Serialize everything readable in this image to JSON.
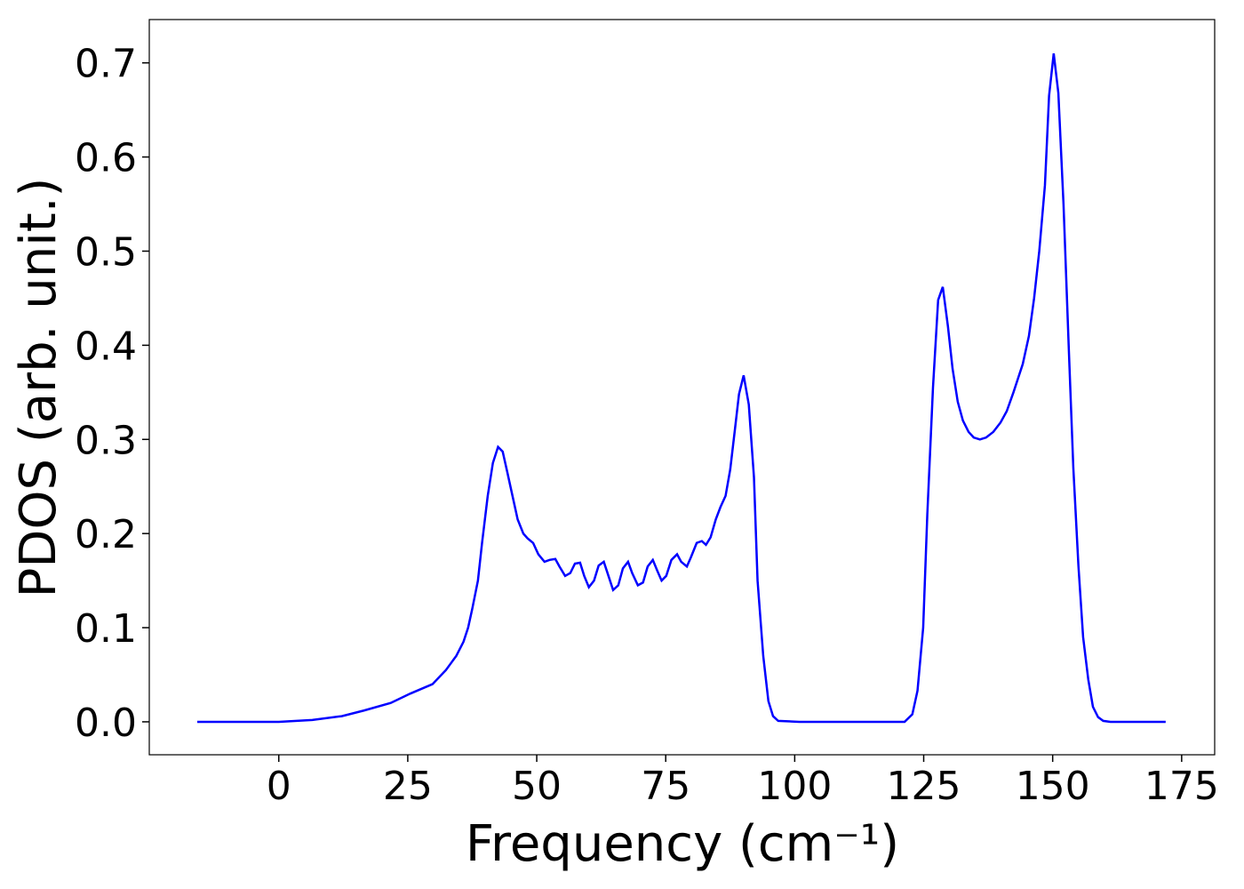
{
  "chart_data": {
    "type": "line",
    "xlabel": "Frequency (cm⁻¹)",
    "ylabel": "PDOS (arb. unit.)",
    "xlim": [
      -25.1,
      181.4
    ],
    "ylim": [
      -0.035,
      0.746
    ],
    "xticks": [
      0,
      25,
      50,
      75,
      100,
      125,
      150,
      175
    ],
    "yticks": [
      {
        "value": 0,
        "label": "0.0"
      },
      {
        "value": 0.1,
        "label": "0.1"
      },
      {
        "value": 0.2,
        "label": "0.2"
      },
      {
        "value": 0.3,
        "label": "0.3"
      },
      {
        "value": 0.4,
        "label": "0.4"
      },
      {
        "value": 0.5,
        "label": "0.5"
      },
      {
        "value": 0.6,
        "label": "0.6"
      },
      {
        "value": 0.7,
        "label": "0.7"
      }
    ],
    "grid": false,
    "series": [
      {
        "color": "#0000ff",
        "x": [
          -15.8,
          0,
          6.5,
          12.2,
          16.5,
          21.7,
          25.5,
          29.8,
          32.4,
          34.4,
          35.8,
          36.7,
          37.5,
          38.6,
          39.4,
          40.5,
          41.5,
          42.5,
          43.4,
          44.3,
          45.3,
          46.3,
          47.4,
          48.2,
          49.3,
          50.3,
          51.5,
          52.5,
          53.6,
          54.4,
          55.5,
          56.5,
          57.4,
          58.4,
          59.2,
          60.1,
          61.1,
          62.0,
          63.0,
          63.9,
          64.8,
          65.8,
          66.7,
          67.7,
          68.5,
          69.6,
          70.6,
          71.5,
          72.5,
          73.4,
          74.2,
          75.1,
          76.1,
          77.2,
          78.0,
          79.1,
          79.9,
          81.0,
          82.0,
          82.8,
          83.7,
          84.7,
          85.6,
          86.6,
          87.5,
          88.4,
          89.2,
          90.1,
          91.1,
          92.1,
          92.8,
          93.9,
          94.9,
          95.8,
          96.8,
          100.9,
          121.3,
          122.8,
          123.8,
          124.9,
          125.7,
          126.8,
          127.8,
          128.7,
          129.7,
          130.6,
          131.6,
          132.6,
          133.7,
          134.7,
          135.9,
          137.1,
          138.5,
          139.9,
          141.1,
          142.4,
          144.2,
          145.4,
          146.4,
          147.4,
          148.5,
          149.3,
          150.2,
          151.1,
          152.1,
          153.1,
          154.0,
          155.0,
          155.9,
          156.9,
          157.8,
          158.8,
          159.8,
          161.2,
          171.9
        ],
        "values": [
          0,
          0,
          0.002,
          0.006,
          0.012,
          0.02,
          0.03,
          0.04,
          0.055,
          0.07,
          0.085,
          0.1,
          0.12,
          0.15,
          0.19,
          0.24,
          0.275,
          0.292,
          0.287,
          0.265,
          0.24,
          0.215,
          0.2,
          0.195,
          0.19,
          0.178,
          0.17,
          0.172,
          0.173,
          0.165,
          0.155,
          0.158,
          0.168,
          0.169,
          0.155,
          0.143,
          0.15,
          0.166,
          0.17,
          0.155,
          0.14,
          0.145,
          0.163,
          0.17,
          0.158,
          0.145,
          0.148,
          0.165,
          0.172,
          0.16,
          0.15,
          0.155,
          0.172,
          0.178,
          0.17,
          0.165,
          0.175,
          0.19,
          0.192,
          0.188,
          0.196,
          0.215,
          0.228,
          0.24,
          0.268,
          0.31,
          0.348,
          0.368,
          0.337,
          0.26,
          0.15,
          0.07,
          0.022,
          0.006,
          0.001,
          0,
          0,
          0.008,
          0.033,
          0.1,
          0.22,
          0.355,
          0.448,
          0.462,
          0.42,
          0.375,
          0.34,
          0.32,
          0.308,
          0.302,
          0.3,
          0.302,
          0.308,
          0.318,
          0.33,
          0.35,
          0.38,
          0.41,
          0.45,
          0.5,
          0.57,
          0.665,
          0.71,
          0.668,
          0.55,
          0.4,
          0.27,
          0.165,
          0.09,
          0.045,
          0.016,
          0.005,
          0.001,
          0,
          0
        ]
      }
    ]
  }
}
